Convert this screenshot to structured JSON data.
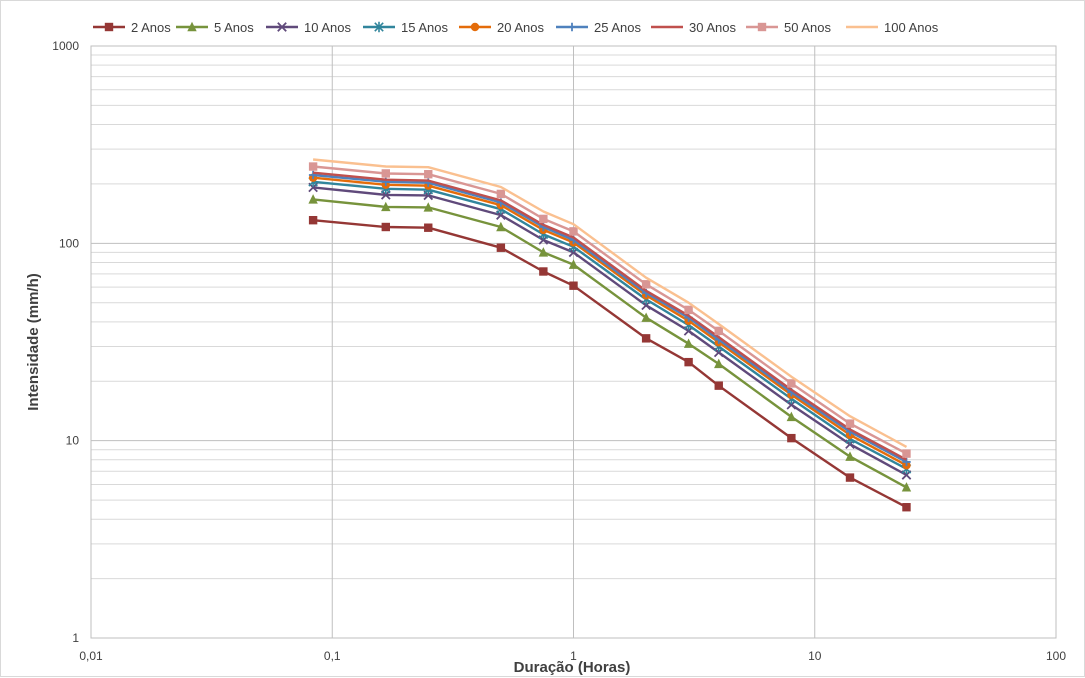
{
  "chart_data": {
    "type": "line",
    "xlabel": "Duração (Horas)",
    "ylabel": "Intensidade (mm/h)",
    "x_scale": "log",
    "y_scale": "log",
    "xlim": [
      0.01,
      100
    ],
    "ylim": [
      1,
      1000
    ],
    "x_ticks": [
      {
        "value": 0.01,
        "label": "0,01"
      },
      {
        "value": 0.1,
        "label": "0,1"
      },
      {
        "value": 1,
        "label": "1"
      },
      {
        "value": 10,
        "label": "10"
      },
      {
        "value": 100,
        "label": "100"
      }
    ],
    "y_ticks": [
      {
        "value": 1,
        "label": "1"
      },
      {
        "value": 10,
        "label": "10"
      },
      {
        "value": 100,
        "label": "100"
      },
      {
        "value": 1000,
        "label": "1000"
      }
    ],
    "grid": true,
    "legend_position": "top",
    "x": [
      0.0833,
      0.1667,
      0.25,
      0.5,
      0.75,
      1,
      2,
      3,
      4,
      8,
      14,
      24
    ],
    "series": [
      {
        "name": "2 Anos",
        "color": "#953735",
        "marker": "square",
        "values": [
          131,
          121,
          120,
          95,
          72,
          61,
          33,
          25,
          19,
          10.3,
          6.5,
          4.6
        ]
      },
      {
        "name": "5 Anos",
        "color": "#77933c",
        "marker": "triangle",
        "values": [
          167,
          153,
          152,
          121,
          90,
          78,
          42,
          31,
          24.5,
          13.2,
          8.3,
          5.8
        ]
      },
      {
        "name": "10 Anos",
        "color": "#604a7b",
        "marker": "x",
        "values": [
          192,
          176,
          175,
          139,
          104,
          90,
          48.5,
          36,
          28,
          15.2,
          9.6,
          6.7
        ]
      },
      {
        "name": "15 Anos",
        "color": "#31859c",
        "marker": "star",
        "values": [
          205,
          189,
          187,
          149,
          111,
          96,
          52,
          38.5,
          30,
          16.3,
          10.2,
          7.2
        ]
      },
      {
        "name": "20 Anos",
        "color": "#e46c0a",
        "marker": "circle",
        "values": [
          215,
          198,
          196,
          156,
          117,
          101,
          54.5,
          40.5,
          31.5,
          17.1,
          10.7,
          7.5
        ]
      },
      {
        "name": "25 Anos",
        "color": "#4f81bd",
        "marker": "plus",
        "values": [
          222,
          205,
          203,
          161,
          121,
          104,
          56,
          42,
          32.5,
          17.6,
          11.1,
          7.8
        ]
      },
      {
        "name": "30 Anos",
        "color": "#c0504d",
        "marker": "none",
        "values": [
          228,
          210,
          208,
          165,
          124,
          107,
          57.5,
          43,
          33.5,
          18.1,
          11.4,
          8.0
        ]
      },
      {
        "name": "50 Anos",
        "color": "#d99694",
        "marker": "square",
        "values": [
          245,
          226,
          224,
          178,
          133,
          115,
          62,
          46,
          36,
          19.5,
          12.2,
          8.6
        ]
      },
      {
        "name": "100 Anos",
        "color": "#fac090",
        "marker": "none",
        "values": [
          266,
          245,
          243,
          193,
          145,
          125,
          67,
          50,
          39,
          21.1,
          13.3,
          9.3
        ]
      }
    ]
  }
}
